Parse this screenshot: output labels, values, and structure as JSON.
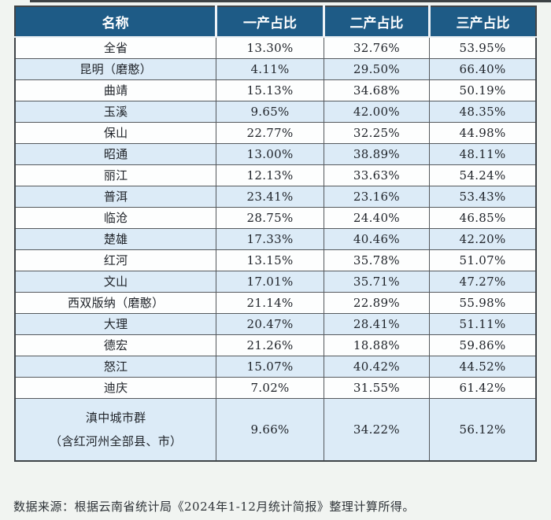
{
  "chart_data": {
    "type": "table",
    "title": "",
    "columns": [
      "名称",
      "一产占比",
      "二产占比",
      "三产占比"
    ],
    "rows": [
      {
        "name": "全省",
        "values": [
          "13.30%",
          "32.76%",
          "53.95%"
        ]
      },
      {
        "name": "昆明（磨憨）",
        "values": [
          "4.11%",
          "29.50%",
          "66.40%"
        ]
      },
      {
        "name": "曲靖",
        "values": [
          "15.13%",
          "34.68%",
          "50.19%"
        ]
      },
      {
        "name": "玉溪",
        "values": [
          "9.65%",
          "42.00%",
          "48.35%"
        ]
      },
      {
        "name": "保山",
        "values": [
          "22.77%",
          "32.25%",
          "44.98%"
        ]
      },
      {
        "name": "昭通",
        "values": [
          "13.00%",
          "38.89%",
          "48.11%"
        ]
      },
      {
        "name": "丽江",
        "values": [
          "12.13%",
          "33.63%",
          "54.24%"
        ]
      },
      {
        "name": "普洱",
        "values": [
          "23.41%",
          "23.16%",
          "53.43%"
        ]
      },
      {
        "name": "临沧",
        "values": [
          "28.75%",
          "24.40%",
          "46.85%"
        ]
      },
      {
        "name": "楚雄",
        "values": [
          "17.33%",
          "40.46%",
          "42.20%"
        ]
      },
      {
        "name": "红河",
        "values": [
          "13.15%",
          "35.78%",
          "51.07%"
        ]
      },
      {
        "name": "文山",
        "values": [
          "17.01%",
          "35.71%",
          "47.27%"
        ]
      },
      {
        "name": "西双版纳（磨憨）",
        "values": [
          "21.14%",
          "22.89%",
          "55.98%"
        ]
      },
      {
        "name": "大理",
        "values": [
          "20.47%",
          "28.41%",
          "51.11%"
        ]
      },
      {
        "name": "德宏",
        "values": [
          "21.26%",
          "18.88%",
          "59.86%"
        ]
      },
      {
        "name": "怒江",
        "values": [
          "15.07%",
          "40.42%",
          "44.52%"
        ]
      },
      {
        "name": "迪庆",
        "values": [
          "7.02%",
          "31.55%",
          "61.42%"
        ]
      },
      {
        "name": "滇中城市群",
        "name_line2": "（含红河州全部县、市）",
        "values": [
          "9.66%",
          "34.22%",
          "56.12%"
        ]
      }
    ]
  },
  "footer": {
    "source_note": "数据来源：根据云南省统计局《2024年1-12月统计简报》整理计算所得。"
  },
  "colors": {
    "header_bg": "#1E5B86",
    "header_text": "#FFFFFF",
    "row_alt_bg": "#DCEBF7",
    "row_bg": "#FDFEFE",
    "border": "#55595D",
    "page_bg": "#F1F4F1"
  }
}
